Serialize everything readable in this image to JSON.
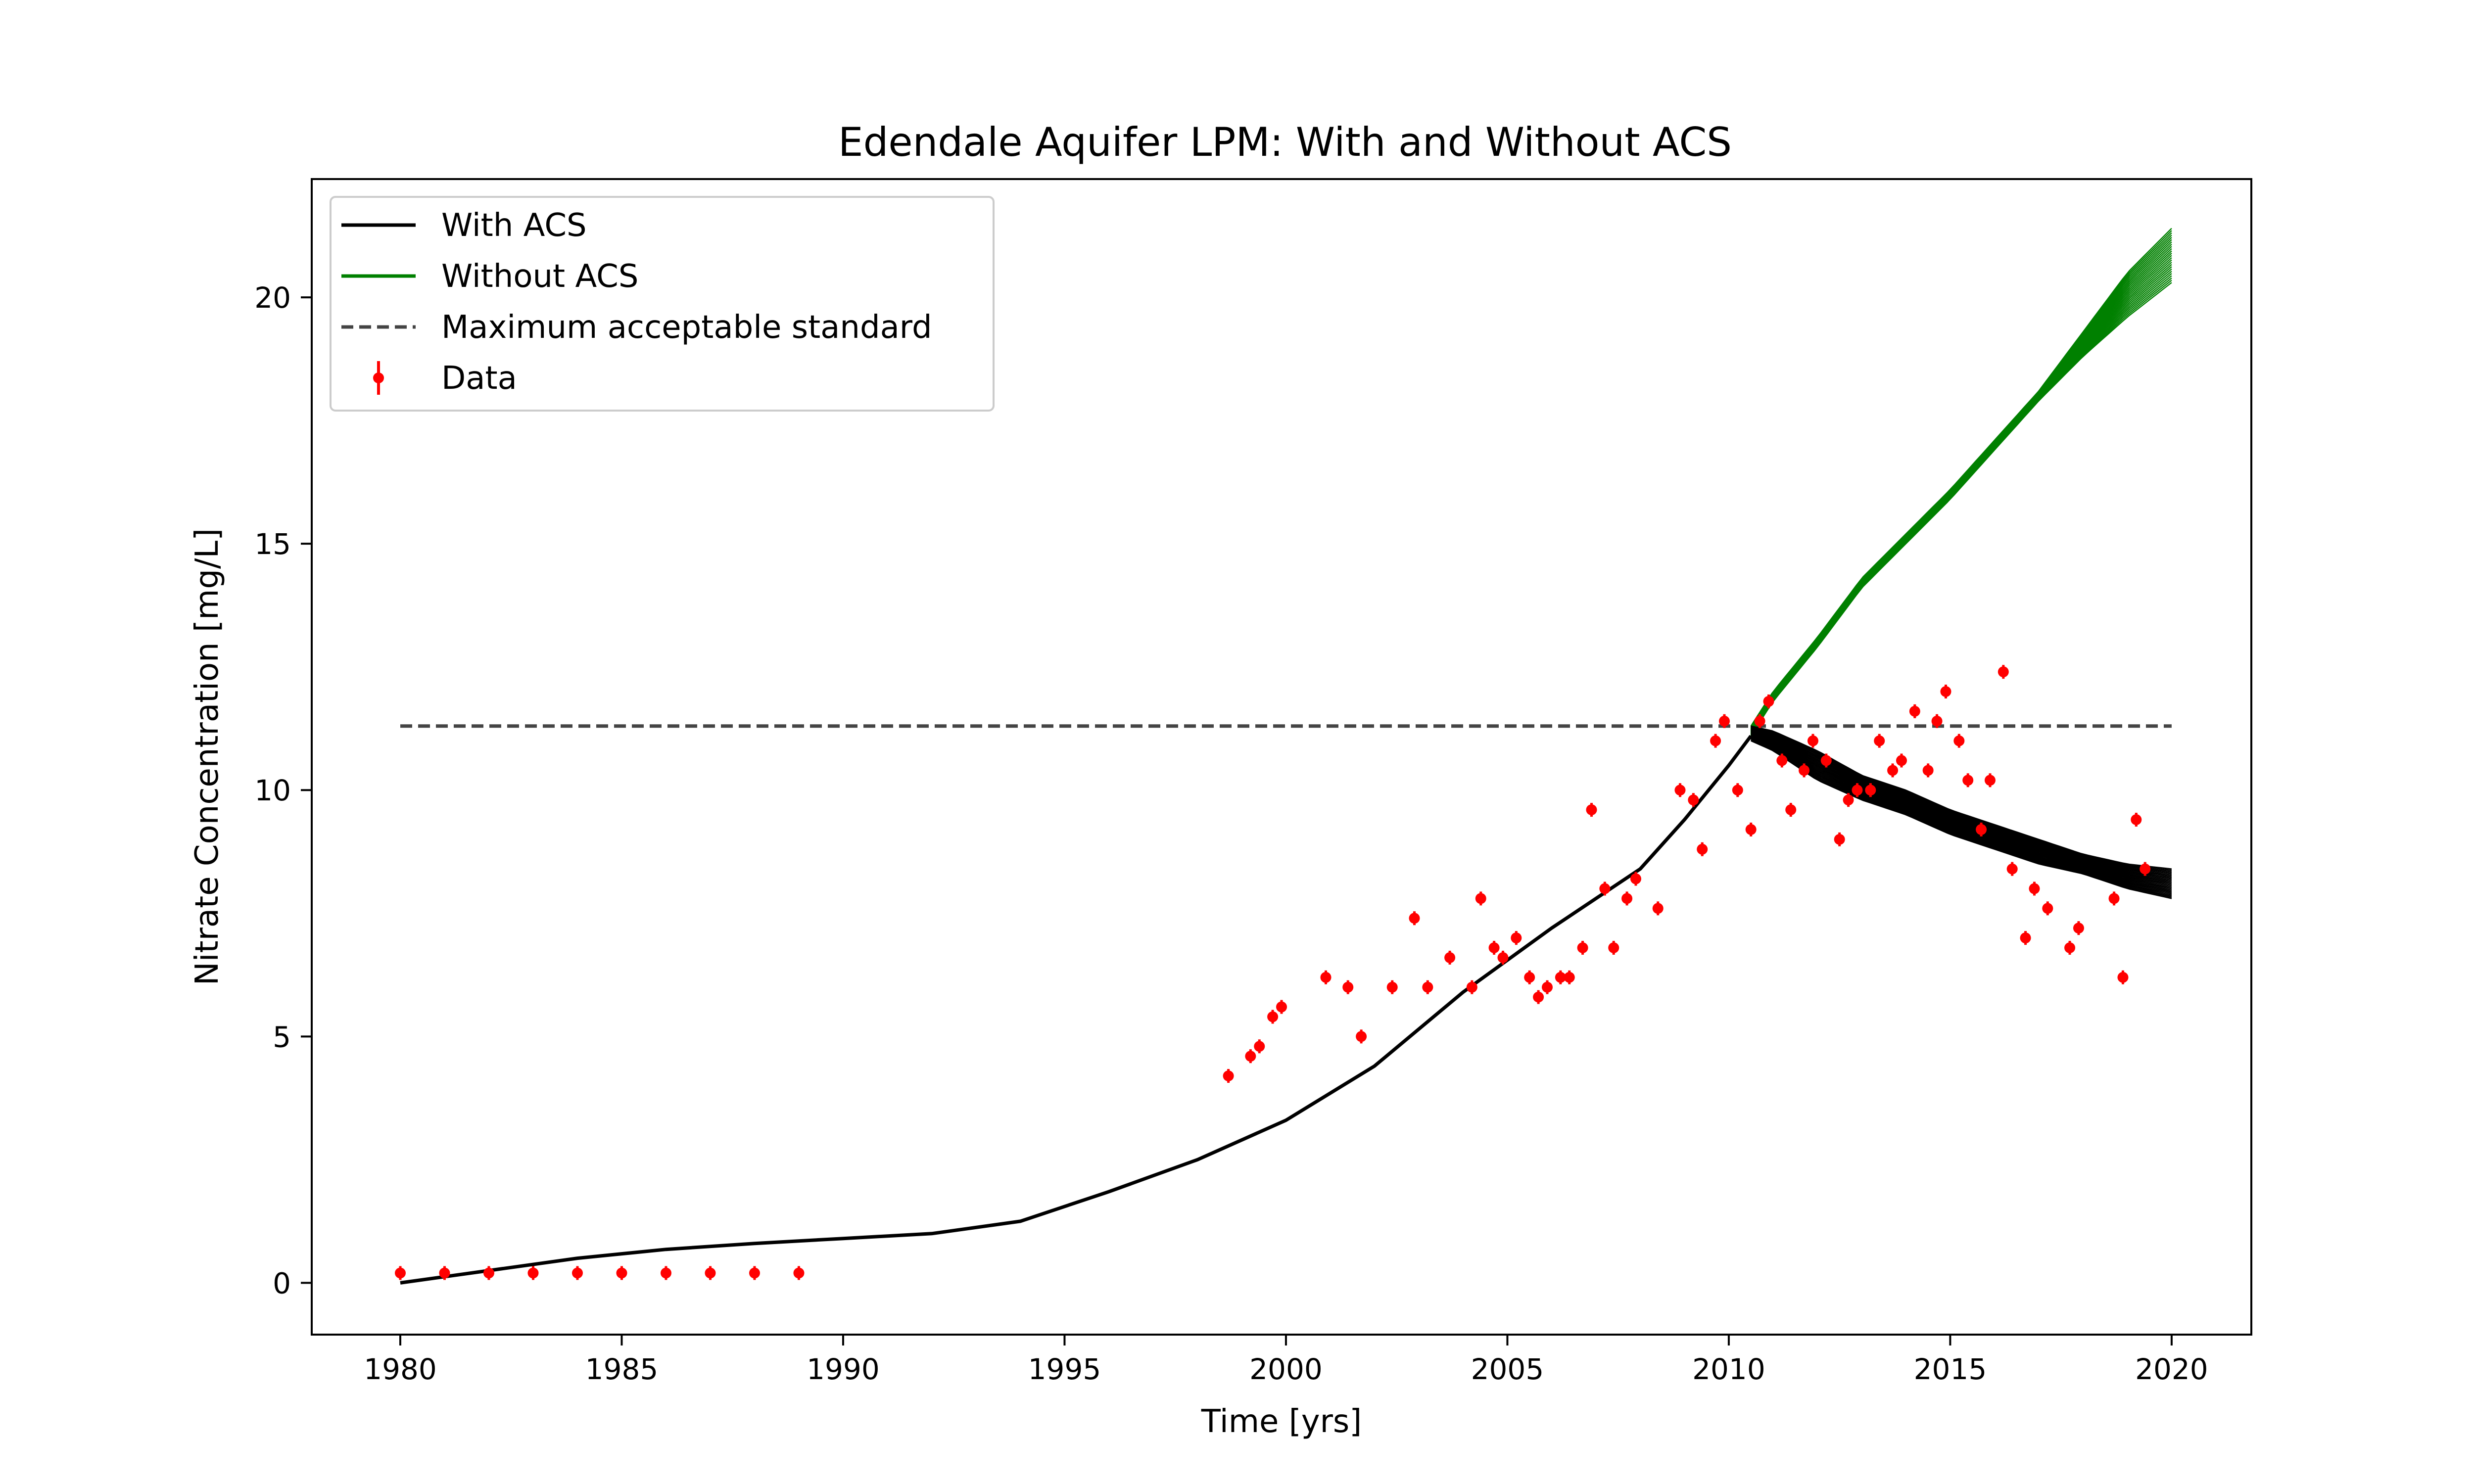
{
  "chart_data": {
    "type": "line",
    "title": "Edendale Aquifer LPM: With and Without ACS",
    "xlabel": "Time [yrs]",
    "ylabel": "Nitrate Concentration [mg/L]",
    "xlim": [
      1978,
      2021.8
    ],
    "ylim": [
      -1.05,
      22.4
    ],
    "xticks": [
      1980,
      1985,
      1990,
      1995,
      2000,
      2005,
      2010,
      2015,
      2020
    ],
    "yticks": [
      0,
      5,
      10,
      15,
      20
    ],
    "grid": false,
    "legend_position": "top-left",
    "legend": [
      {
        "label": "With ACS",
        "style": "solid",
        "color": "#000000"
      },
      {
        "label": "Without ACS",
        "style": "solid",
        "color": "#008000"
      },
      {
        "label": "Maximum acceptable standard",
        "style": "dashed",
        "color": "#444444"
      },
      {
        "label": "Data",
        "style": "errorbar-marker",
        "color": "#ff0000"
      }
    ],
    "series": [
      {
        "name": "With ACS",
        "color": "#000000",
        "x": [
          1980,
          1982,
          1984,
          1986,
          1988,
          1990,
          1992,
          1994,
          1996,
          1998,
          2000,
          2002,
          2004,
          2006,
          2008,
          2009,
          2010,
          2010.5
        ],
        "y": [
          0.0,
          0.25,
          0.5,
          0.68,
          0.8,
          0.9,
          1.0,
          1.25,
          1.85,
          2.5,
          3.3,
          4.4,
          5.9,
          7.2,
          8.4,
          9.4,
          10.5,
          11.1
        ],
        "ensemble": {
          "x": [
            2010.5,
            2011,
            2012,
            2013,
            2014,
            2015,
            2016,
            2017,
            2018,
            2019,
            2020
          ],
          "y_low": [
            11.0,
            10.8,
            10.2,
            9.8,
            9.5,
            9.1,
            8.8,
            8.5,
            8.3,
            8.0,
            7.8
          ],
          "y_high": [
            11.3,
            11.2,
            10.8,
            10.3,
            10.0,
            9.6,
            9.3,
            9.0,
            8.7,
            8.5,
            8.4
          ],
          "count": 25
        }
      },
      {
        "name": "Without ACS",
        "color": "#008000",
        "ensemble": {
          "x": [
            2010.5,
            2011,
            2012,
            2013,
            2014,
            2015,
            2016,
            2017,
            2018,
            2019,
            2020
          ],
          "y_low": [
            11.1,
            11.8,
            12.9,
            14.1,
            15.0,
            15.9,
            16.9,
            17.9,
            18.8,
            19.6,
            20.3
          ],
          "y_high": [
            11.3,
            12.0,
            13.1,
            14.3,
            15.2,
            16.1,
            17.1,
            18.1,
            19.3,
            20.5,
            21.4
          ],
          "count": 25
        }
      },
      {
        "name": "Maximum acceptable standard",
        "color": "#444444",
        "x": [
          1980,
          2020
        ],
        "y": [
          11.3,
          11.3
        ]
      }
    ],
    "points": {
      "name": "Data",
      "color": "#ff0000",
      "x": [
        1980,
        1981,
        1982,
        1983,
        1984,
        1985,
        1986,
        1987,
        1988,
        1989,
        1998.7,
        1999.2,
        1999.4,
        1999.7,
        1999.9,
        2000.9,
        2001.4,
        2001.7,
        2002.4,
        2002.9,
        2003.2,
        2003.7,
        2004.2,
        2004.4,
        2004.7,
        2004.9,
        2005.2,
        2005.5,
        2005.7,
        2005.9,
        2006.2,
        2006.4,
        2006.7,
        2006.9,
        2007.2,
        2007.4,
        2007.7,
        2007.9,
        2008.4,
        2008.9,
        2009.2,
        2009.4,
        2009.7,
        2009.9,
        2010.2,
        2010.5,
        2010.7,
        2010.9,
        2011.2,
        2011.4,
        2011.7,
        2011.9,
        2012.2,
        2012.5,
        2012.7,
        2012.9,
        2013.2,
        2013.4,
        2013.7,
        2013.9,
        2014.2,
        2014.5,
        2014.7,
        2014.9,
        2015.2,
        2015.4,
        2015.7,
        2015.9,
        2016.2,
        2016.4,
        2016.7,
        2016.9,
        2017.2,
        2017.7,
        2017.9,
        2018.7,
        2018.9,
        2019.2,
        2019.4
      ],
      "y": [
        0.2,
        0.2,
        0.2,
        0.2,
        0.2,
        0.2,
        0.2,
        0.2,
        0.2,
        0.2,
        4.2,
        4.6,
        4.8,
        5.4,
        5.6,
        6.2,
        6.0,
        5.0,
        6.0,
        7.4,
        6.0,
        6.6,
        6.0,
        7.8,
        6.8,
        6.6,
        7.0,
        6.2,
        5.8,
        6.0,
        6.2,
        6.2,
        6.8,
        9.6,
        8.0,
        6.8,
        7.8,
        8.2,
        7.6,
        10.0,
        9.8,
        8.8,
        11.0,
        11.4,
        10.0,
        9.2,
        11.4,
        11.8,
        10.6,
        9.6,
        10.4,
        11.0,
        10.6,
        9.0,
        9.8,
        10.0,
        10.0,
        11.0,
        10.4,
        10.6,
        11.6,
        10.4,
        11.4,
        12.0,
        11.0,
        10.2,
        9.2,
        10.2,
        12.4,
        8.4,
        7.0,
        8.0,
        7.6,
        6.8,
        7.2,
        7.8,
        6.2,
        9.4,
        8.4
      ]
    }
  }
}
